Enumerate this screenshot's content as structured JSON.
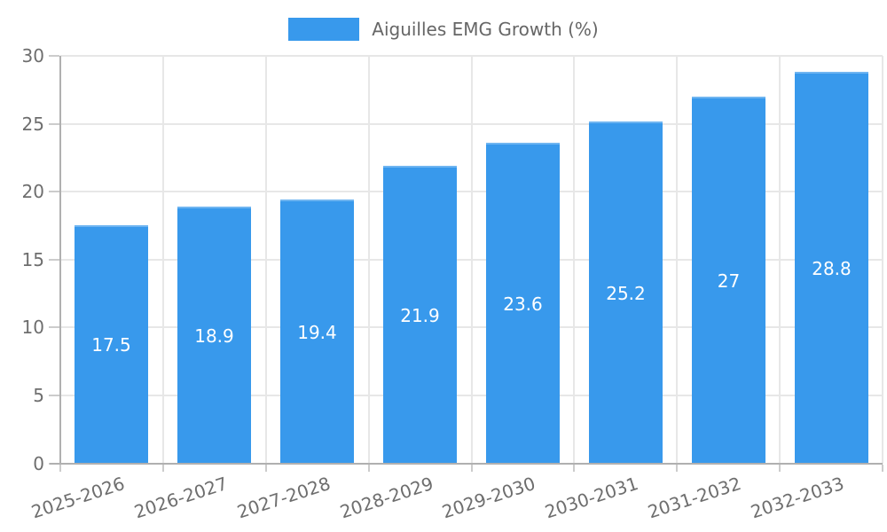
{
  "chart_data": {
    "type": "bar",
    "title": "Aiguilles EMG Growth (%)",
    "legend": {
      "label": "Aiguilles EMG Growth (%)",
      "position": "top"
    },
    "categories": [
      "2025-2026",
      "2026-2027",
      "2027-2028",
      "2028-2029",
      "2029-2030",
      "2030-2031",
      "2031-2032",
      "2032-2033"
    ],
    "values": [
      17.5,
      18.9,
      19.4,
      21.9,
      23.6,
      25.2,
      27,
      28.8
    ],
    "value_labels": [
      "17.5",
      "18.9",
      "19.4",
      "21.9",
      "23.6",
      "25.2",
      "27",
      "28.8"
    ],
    "xlabel": "",
    "ylabel": "",
    "ylim": [
      0,
      30
    ],
    "yticks": [
      0,
      5,
      10,
      15,
      20,
      25,
      30
    ],
    "grid": true,
    "value_labels_position": "inside-center",
    "x_label_rotation_deg": -18,
    "colors": {
      "bar": "#3899ec",
      "grid": "#e7e7e7",
      "axis_line": "#b0b0b0",
      "axis_text": "#6e6e6e",
      "legend_text": "#666666",
      "value_label": "#ffffff",
      "background": "#ffffff"
    }
  }
}
